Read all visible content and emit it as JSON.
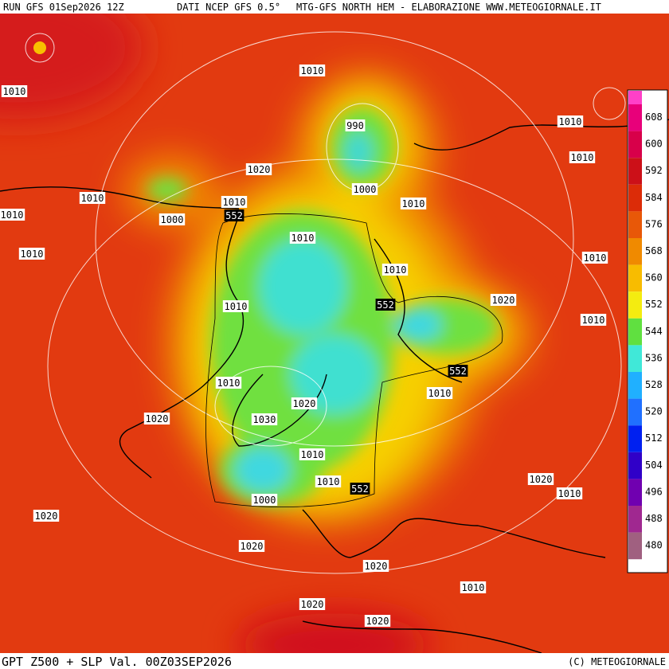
{
  "header": {
    "run": "RUN GFS 01Sep2026 12Z",
    "source": "DATI NCEP GFS 0.5°",
    "credit": "MTG-GFS NORTH HEM - ELABORAZIONE WWW.METEOGIORNALE.IT"
  },
  "footer": {
    "title": "GPT Z500 + SLP Val. 00Z03SEP2026",
    "copyright": "(C) METEOGIORNALE"
  },
  "colorbar": {
    "levels": [
      {
        "value": 608,
        "color": "#e8007a"
      },
      {
        "value": 600,
        "color": "#d8004a"
      },
      {
        "value": 592,
        "color": "#cc1018"
      },
      {
        "value": 584,
        "color": "#dc2c08"
      },
      {
        "value": 576,
        "color": "#e85808"
      },
      {
        "value": 568,
        "color": "#f08a00"
      },
      {
        "value": 560,
        "color": "#f8bc00"
      },
      {
        "value": 552,
        "color": "#f4ec10"
      },
      {
        "value": 544,
        "color": "#60e040"
      },
      {
        "value": 536,
        "color": "#40e8d8"
      },
      {
        "value": 528,
        "color": "#20b0ff"
      },
      {
        "value": 520,
        "color": "#2070ff"
      },
      {
        "value": 512,
        "color": "#0020f0"
      },
      {
        "value": 504,
        "color": "#3000c8"
      },
      {
        "value": 496,
        "color": "#7000b0"
      },
      {
        "value": 488,
        "color": "#a02890"
      },
      {
        "value": 480,
        "color": "#a06080"
      }
    ]
  },
  "contour_labels": [
    "1010",
    "1010",
    "990",
    "1010",
    "1010",
    "1020",
    "1000",
    "1010",
    "1010",
    "1010",
    "1010",
    "552",
    "1000",
    "1010",
    "1010",
    "1010",
    "1010",
    "1020",
    "552",
    "1010",
    "1010",
    "552",
    "1010",
    "1010",
    "1020",
    "1020",
    "1030",
    "1010",
    "1010",
    "552",
    "1020",
    "1010",
    "1000",
    "1020",
    "1020",
    "1020",
    "1010",
    "1020",
    "1020"
  ]
}
